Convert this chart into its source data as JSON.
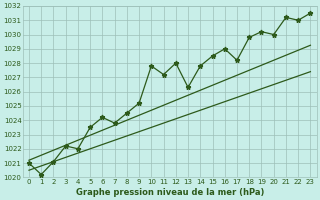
{
  "title": "Graphe pression niveau de la mer (hPa)",
  "bg_color": "#c8eee8",
  "grid_color": "#9dbfb8",
  "line_color": "#2d5a1b",
  "text_color": "#2d5a1b",
  "ylim": [
    1020,
    1032
  ],
  "xlim": [
    -0.5,
    23.5
  ],
  "yticks": [
    1020,
    1021,
    1022,
    1023,
    1024,
    1025,
    1026,
    1027,
    1028,
    1029,
    1030,
    1031,
    1032
  ],
  "xticks": [
    0,
    1,
    2,
    3,
    4,
    5,
    6,
    7,
    8,
    9,
    10,
    11,
    12,
    13,
    14,
    15,
    16,
    17,
    18,
    19,
    20,
    21,
    22,
    23
  ],
  "pressure": [
    1021.0,
    1020.2,
    1021.1,
    1022.2,
    1022.0,
    1023.5,
    1024.2,
    1023.8,
    1024.5,
    1025.2,
    1027.8,
    1027.2,
    1028.0,
    1026.3,
    1027.8,
    1028.5,
    1029.0,
    1028.2,
    1029.8,
    1030.2,
    1030.0,
    1031.2,
    1031.0,
    1031.5
  ],
  "trend_low": [
    1020.5,
    1020.8,
    1021.1,
    1021.4,
    1021.7,
    1022.0,
    1022.3,
    1022.6,
    1022.9,
    1023.2,
    1023.5,
    1023.8,
    1024.1,
    1024.4,
    1024.7,
    1025.0,
    1025.3,
    1025.6,
    1025.9,
    1026.2,
    1026.5,
    1026.8,
    1027.1,
    1027.4
  ],
  "trend_high": [
    1021.2,
    1021.55,
    1021.9,
    1022.25,
    1022.6,
    1022.95,
    1023.3,
    1023.65,
    1024.0,
    1024.35,
    1024.7,
    1025.05,
    1025.4,
    1025.75,
    1026.1,
    1026.45,
    1026.8,
    1027.15,
    1027.5,
    1027.85,
    1028.2,
    1028.55,
    1028.9,
    1029.25
  ],
  "title_fontsize": 6.0,
  "tick_fontsize": 5.0
}
